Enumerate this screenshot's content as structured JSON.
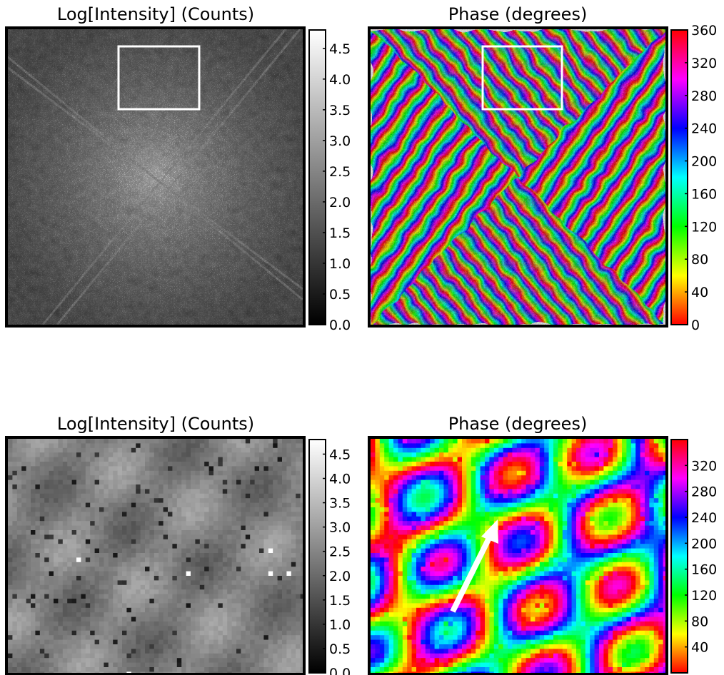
{
  "chart_data": [
    {
      "type": "heatmap",
      "panel": "top-left",
      "title": "Log[Intensity] (Counts)",
      "content": "far-field speckle diffraction intensity, bright center with four streaks along diagonals",
      "colormap": "gray",
      "colorbar": {
        "range": [
          0.0,
          4.8
        ],
        "ticks": [
          "0.0",
          "0.5",
          "1.0",
          "1.5",
          "2.0",
          "2.5",
          "3.0",
          "3.5",
          "4.0",
          "4.5"
        ]
      },
      "highlight_box": true
    },
    {
      "type": "heatmap",
      "panel": "top-right",
      "title": "Phase (degrees)",
      "content": "phase map with fringe patterns along diagonals",
      "colormap": "hsv",
      "colorbar": {
        "range": [
          0,
          360
        ],
        "ticks": [
          "0",
          "40",
          "80",
          "120",
          "160",
          "200",
          "240",
          "280",
          "320",
          "360"
        ]
      },
      "highlight_box": true
    },
    {
      "type": "heatmap",
      "panel": "bottom-left",
      "title": "Log[Intensity] (Counts)",
      "content": "zoom of boxed region, coarse pixels",
      "colormap": "gray",
      "colorbar": {
        "range": [
          0.0,
          4.8
        ],
        "ticks": [
          "0.0",
          "0.5",
          "1.0",
          "1.5",
          "2.0",
          "2.5",
          "3.0",
          "3.5",
          "4.0",
          "4.5"
        ]
      }
    },
    {
      "type": "heatmap",
      "panel": "bottom-right",
      "title": "Phase (degrees)",
      "content": "zoom of boxed region phase, coarse pixels",
      "colormap": "hsv",
      "colorbar": {
        "range": [
          0,
          360
        ],
        "ticks": [
          "40",
          "80",
          "120",
          "160",
          "200",
          "240",
          "280",
          "320"
        ]
      },
      "annotation": "white arrow pointing up-right"
    }
  ],
  "colors": {
    "frame": "#000000",
    "box": "#ffffff",
    "arrow": "#ffffff"
  }
}
